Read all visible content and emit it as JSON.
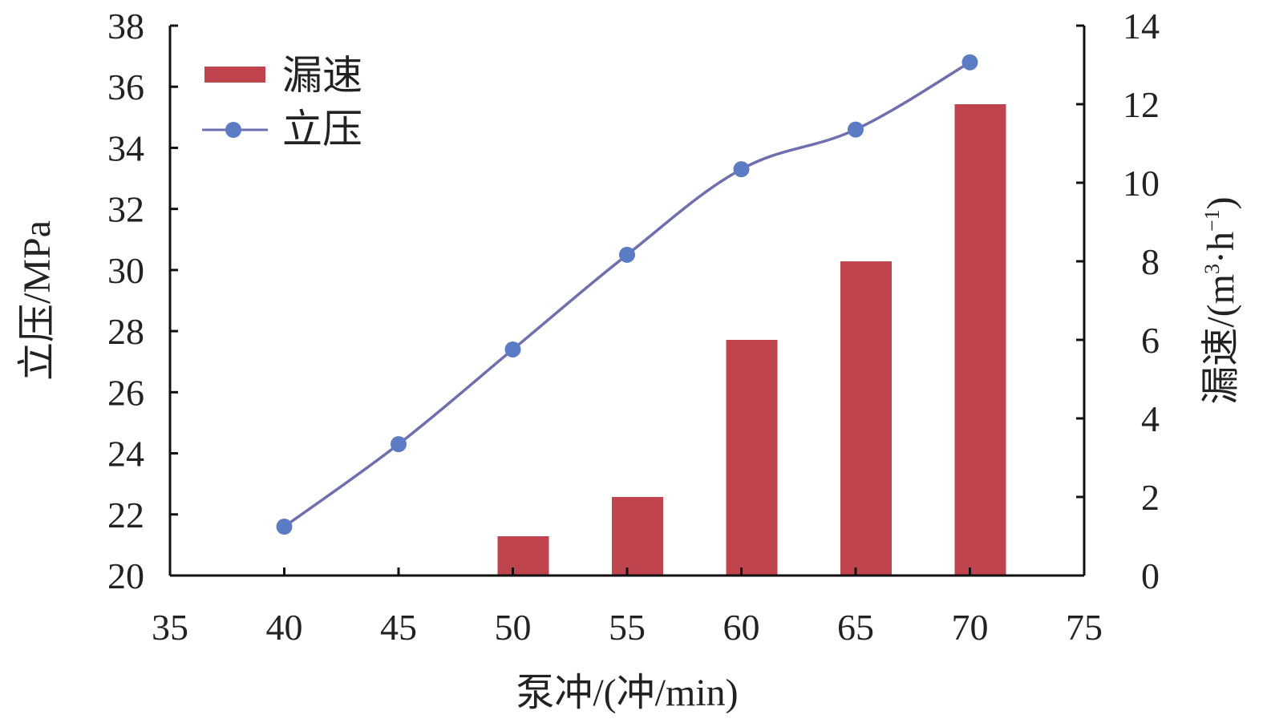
{
  "chart_data": {
    "type": "bar+line",
    "x_axis": {
      "label": "泵冲/(冲/min)",
      "range": [
        35,
        75
      ],
      "ticks": [
        35,
        40,
        45,
        50,
        55,
        60,
        65,
        70,
        75
      ]
    },
    "y_left": {
      "label": "立压/MPa",
      "range": [
        20,
        38
      ],
      "ticks": [
        20,
        22,
        24,
        26,
        28,
        30,
        32,
        34,
        36,
        38
      ]
    },
    "y_right": {
      "label_main": "漏速/(m",
      "label_sup1": "3",
      "label_mid": "·h",
      "label_sup2": "−1",
      "label_end": ")",
      "range": [
        0,
        14
      ],
      "ticks": [
        0,
        2,
        4,
        6,
        8,
        10,
        12,
        14
      ]
    },
    "legend": {
      "placement": "top-left",
      "entries": [
        "漏速",
        "立压"
      ]
    },
    "series": [
      {
        "name": "漏速",
        "type": "bar",
        "axis": "right",
        "color": "#C0444E",
        "x": [
          50,
          55,
          60,
          65,
          70
        ],
        "values": [
          1,
          2,
          6,
          8,
          12
        ]
      },
      {
        "name": "立压",
        "type": "line",
        "axis": "left",
        "color": "#5B7BC5",
        "line_color": "#6E6FAE",
        "x": [
          40,
          45,
          50,
          55,
          60,
          65,
          70
        ],
        "values": [
          21.6,
          24.3,
          27.4,
          30.5,
          33.3,
          34.6,
          36.8
        ]
      }
    ],
    "grid": false
  }
}
